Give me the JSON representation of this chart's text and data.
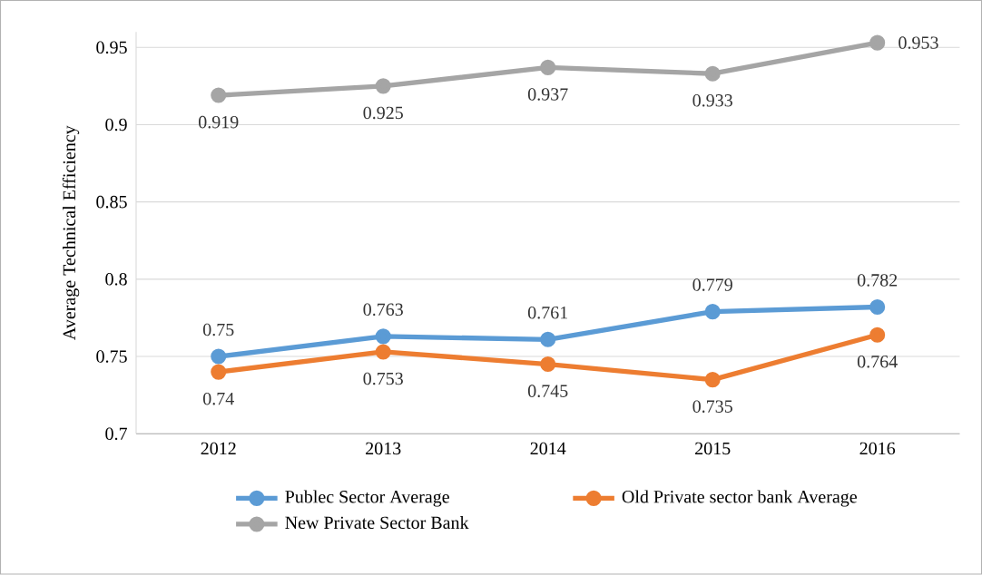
{
  "chart_data": {
    "type": "line",
    "ylabel": "Average Technical Efficiency",
    "categories": [
      "2012",
      "2013",
      "2014",
      "2015",
      "2016"
    ],
    "series": [
      {
        "name": "Publec Sector Average",
        "color": "#5b9bd5",
        "values": [
          0.75,
          0.763,
          0.761,
          0.779,
          0.782
        ]
      },
      {
        "name": "Old Private sector bank Average",
        "color": "#ed7d31",
        "values": [
          0.74,
          0.753,
          0.745,
          0.735,
          0.764
        ]
      },
      {
        "name": "New Private Sector Bank",
        "color": "#a5a5a5",
        "values": [
          0.919,
          0.925,
          0.937,
          0.933,
          0.953
        ]
      }
    ],
    "ylim": [
      0.7,
      0.96
    ],
    "yticks": [
      0.7,
      0.75,
      0.8,
      0.85,
      0.9,
      0.95
    ],
    "grid": "y",
    "legend": "bottom",
    "marker": "circle",
    "line_style": "solid",
    "data_labels": true
  }
}
